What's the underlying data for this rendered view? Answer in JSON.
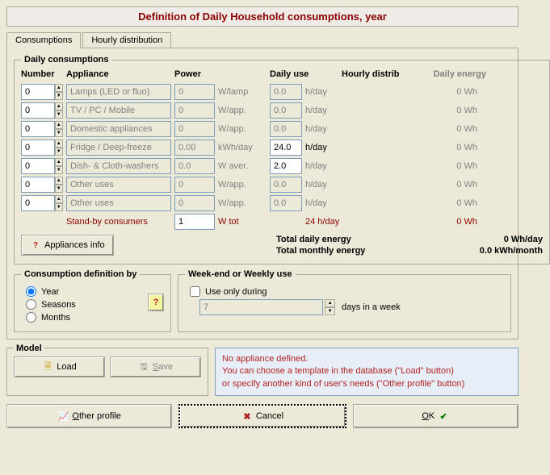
{
  "title": "Definition of Daily Household consumptions, year",
  "tabs": {
    "consumptions": "Consumptions",
    "hourly": "Hourly distribution"
  },
  "daily": {
    "legend": "Daily consumptions",
    "headers": {
      "number": "Number",
      "appliance": "Appliance",
      "power": "Power",
      "daily_use": "Daily use",
      "hourly_distrib": "Hourly distrib",
      "daily_energy": "Daily energy"
    },
    "rows": [
      {
        "num": "0",
        "app": "Lamps (LED or fluo)",
        "pow": "0",
        "powunit": "W/lamp",
        "use": "0.0",
        "useunit": "h/day",
        "de": "0 Wh",
        "gray_use": true
      },
      {
        "num": "0",
        "app": "TV / PC / Mobile",
        "pow": "0",
        "powunit": "W/app.",
        "use": "0.0",
        "useunit": "h/day",
        "de": "0 Wh",
        "gray_use": true
      },
      {
        "num": "0",
        "app": "Domestic appliances",
        "pow": "0",
        "powunit": "W/app.",
        "use": "0.0",
        "useunit": "h/day",
        "de": "0 Wh",
        "gray_use": true
      },
      {
        "num": "0",
        "app": "Fridge / Deep-freeze",
        "pow": "0.00",
        "powunit": "kWh/day",
        "use": "24.0",
        "useunit": "h/day",
        "de": "0 Wh",
        "gray_use": false,
        "black_useunit": true
      },
      {
        "num": "0",
        "app": "Dish- & Cloth-washers",
        "pow": "0.0",
        "powunit": "W aver.",
        "use": "2.0",
        "useunit": "h/day",
        "de": "0 Wh",
        "gray_use": false
      },
      {
        "num": "0",
        "app": "Other uses",
        "pow": "0",
        "powunit": "W/app.",
        "use": "0.0",
        "useunit": "h/day",
        "de": "0 Wh",
        "gray_use": true
      },
      {
        "num": "0",
        "app": "Other uses",
        "pow": "0",
        "powunit": "W/app.",
        "use": "0.0",
        "useunit": "h/day",
        "de": "0 Wh",
        "gray_use": true
      }
    ],
    "standby": {
      "label": "Stand-by consumers",
      "pow": "1",
      "powunit": "W tot",
      "use": "24 h/day",
      "de": "0 Wh"
    },
    "appliances_info": "Appliances info",
    "totals": {
      "daily_label": "Total daily energy",
      "daily_value": "0 Wh/day",
      "monthly_label": "Total monthly energy",
      "monthly_value": "0.0 kWh/month"
    }
  },
  "defby": {
    "legend": "Consumption definition by",
    "year": "Year",
    "seasons": "Seasons",
    "months": "Months"
  },
  "weekend": {
    "legend": "Week-end or Weekly use",
    "use_only": "Use only during",
    "days_value": "7",
    "days_label": "days in a week"
  },
  "model": {
    "legend": "Model",
    "load": "Load",
    "save": "Save"
  },
  "warning": {
    "line1": "No appliance defined.",
    "line2": "You can choose a template in the database (\"Load\" button)",
    "line3": "or specify another kind of user's needs (\"Other profile\" button)"
  },
  "bottom": {
    "other_profile": "Other profile",
    "cancel": "Cancel",
    "ok": "OK"
  }
}
